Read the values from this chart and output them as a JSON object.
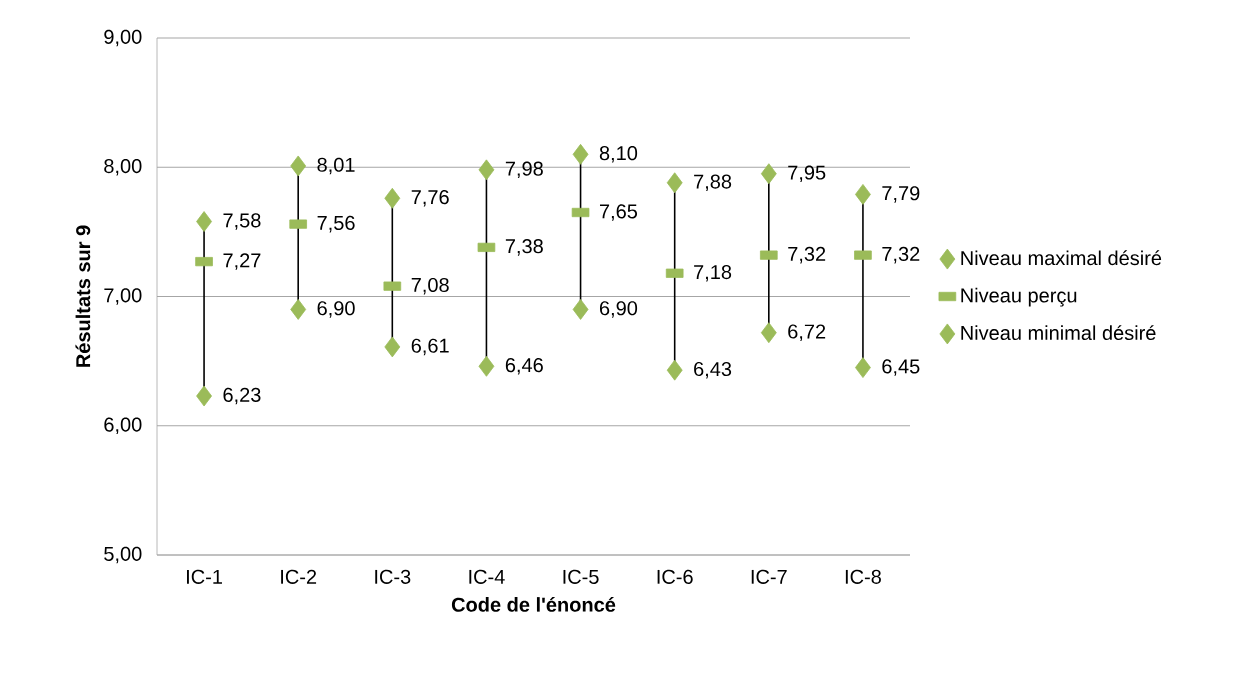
{
  "chart_data": {
    "type": "scatter",
    "xlabel": "Code de l'énoncé",
    "ylabel": "Résultats sur 9",
    "categories": [
      "IC-1",
      "IC-2",
      "IC-3",
      "IC-4",
      "IC-5",
      "IC-6",
      "IC-7",
      "IC-8"
    ],
    "ylim": [
      5,
      9
    ],
    "yticks": [
      {
        "value": 5,
        "label": "5,00"
      },
      {
        "value": 6,
        "label": "6,00"
      },
      {
        "value": 7,
        "label": "7,00"
      },
      {
        "value": 8,
        "label": "8,00"
      },
      {
        "value": 9,
        "label": "9,00"
      }
    ],
    "grid": "y",
    "legend": "right",
    "series": [
      {
        "name": "Niveau maximal désiré",
        "color": "#9bbb59",
        "marker": "diamond",
        "values": [
          7.58,
          8.01,
          7.76,
          7.98,
          8.1,
          7.88,
          7.95,
          7.79
        ],
        "value_labels": [
          "7,58",
          "8,01",
          "7,76",
          "7,98",
          "8,10",
          "7,88",
          "7,95",
          "7,79"
        ]
      },
      {
        "name": "Niveau perçu",
        "color": "#9bbb59",
        "marker": "square",
        "values": [
          7.27,
          7.56,
          7.08,
          7.38,
          7.65,
          7.18,
          7.32,
          7.32
        ],
        "value_labels": [
          "7,27",
          "7,56",
          "7,08",
          "7,38",
          "7,65",
          "7,18",
          "7,32",
          "7,32"
        ]
      },
      {
        "name": "Niveau minimal désiré",
        "color": "#9bbb59",
        "marker": "diamond",
        "values": [
          6.23,
          6.9,
          6.61,
          6.46,
          6.9,
          6.43,
          6.72,
          6.45
        ],
        "value_labels": [
          "6,23",
          "6,90",
          "6,61",
          "6,46",
          "6,90",
          "6,43",
          "6,72",
          "6,45"
        ]
      }
    ]
  }
}
